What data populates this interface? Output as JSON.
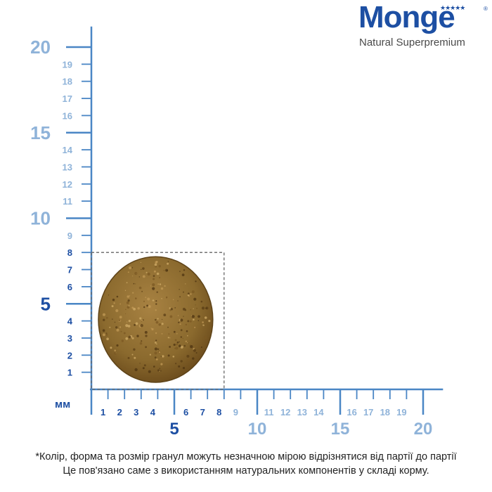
{
  "brand": {
    "name": "Monge",
    "tagline": "Natural Superpremium",
    "stars": "★★★★★",
    "registered": "®"
  },
  "colors": {
    "axis": "#4a86c5",
    "major_label": "#8fb3d9",
    "minor_label": "#1d4fa3",
    "unit_label": "#1d4fa3",
    "dashed_box": "#666666",
    "kibble": "#8b6a2e",
    "kibble_dark": "#6f4f1e"
  },
  "ruler": {
    "unit": "мм",
    "y_major_labels": [
      "5",
      "10",
      "15",
      "20"
    ],
    "y_minor_labels": [
      "1",
      "2",
      "3",
      "4",
      "6",
      "7",
      "8",
      "9",
      "11",
      "12",
      "13",
      "14",
      "16",
      "17",
      "18",
      "19"
    ],
    "x_major_labels": [
      "5",
      "10",
      "15",
      "20"
    ],
    "x_minor_labels": [
      "1",
      "2",
      "3",
      "4",
      "6",
      "7",
      "8",
      "9",
      "11",
      "12",
      "13",
      "14",
      "16",
      "17",
      "18",
      "19"
    ]
  },
  "kibble": {
    "width_mm": 8,
    "height_mm": 8
  },
  "disclaimer": {
    "line1": "*Колір, форма та розмір гранул можуть незначною мірою відрізнятися від партії до партії",
    "line2": "Це пов'язано саме з використанням натуральних компонентів у складі корму."
  }
}
